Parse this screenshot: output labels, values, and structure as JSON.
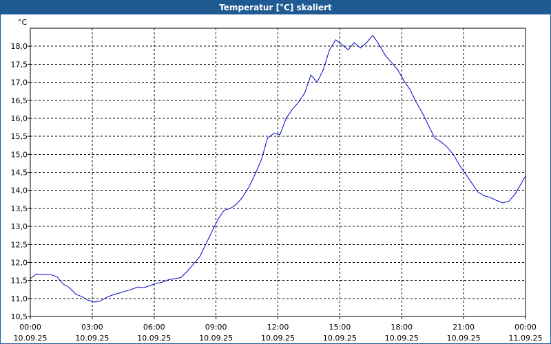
{
  "window": {
    "title": "Temperatur [°C] skaliert"
  },
  "chart_data": {
    "type": "line",
    "title": "Temperatur [°C] skaliert",
    "ylabel": "°C",
    "xlabel": "",
    "ylim": [
      10.5,
      18.5
    ],
    "xlim_hours": [
      0,
      24
    ],
    "grid": true,
    "series_color": "#0000c8",
    "yticks": [
      "10,5",
      "11,0",
      "11,5",
      "12,0",
      "12,5",
      "13,0",
      "13,5",
      "14,0",
      "14,5",
      "15,0",
      "15,5",
      "16,0",
      "16,5",
      "17,0",
      "17,5",
      "18,0"
    ],
    "xticks": [
      {
        "time": "00:00",
        "date": "10.09.25"
      },
      {
        "time": "03:00",
        "date": "10.09.25"
      },
      {
        "time": "06:00",
        "date": "10.09.25"
      },
      {
        "time": "09:00",
        "date": "10.09.25"
      },
      {
        "time": "12:00",
        "date": "10.09.25"
      },
      {
        "time": "15:00",
        "date": "10.09.25"
      },
      {
        "time": "18:00",
        "date": "10.09.25"
      },
      {
        "time": "21:00",
        "date": "10.09.25"
      },
      {
        "time": "00:00",
        "date": "11.09.25"
      }
    ],
    "series": [
      {
        "x": [
          0.0,
          0.3,
          0.6,
          1.0,
          1.3,
          1.6,
          1.9,
          2.2,
          2.5,
          2.8,
          3.1,
          3.4,
          3.7,
          4.0,
          4.3,
          4.6,
          4.9,
          5.2,
          5.5,
          5.8,
          6.1,
          6.4,
          6.7,
          7.0,
          7.3,
          7.6,
          7.9,
          8.2,
          8.5,
          8.8,
          9.1,
          9.4,
          9.7,
          10.0,
          10.3,
          10.6,
          10.9,
          11.2,
          11.5,
          11.8,
          12.1,
          12.4,
          12.7,
          13.0,
          13.3,
          13.6,
          13.9,
          14.2,
          14.5,
          14.8,
          15.1,
          15.4,
          15.7,
          16.0,
          16.3,
          16.6,
          16.9,
          17.2,
          17.5,
          17.8,
          18.1,
          18.4,
          18.7,
          19.0,
          19.3,
          19.6,
          19.9,
          20.2,
          20.5,
          20.8,
          21.1,
          21.4,
          21.7,
          22.0,
          22.3,
          22.6,
          22.9,
          23.2,
          23.5,
          23.8,
          24.0
        ],
        "y": [
          11.55,
          11.68,
          11.67,
          11.66,
          11.6,
          11.4,
          11.3,
          11.12,
          11.05,
          10.95,
          10.9,
          10.93,
          11.03,
          11.1,
          11.15,
          11.2,
          11.25,
          11.32,
          11.3,
          11.36,
          11.42,
          11.45,
          11.52,
          11.55,
          11.58,
          11.75,
          11.95,
          12.15,
          12.5,
          12.85,
          13.2,
          13.45,
          13.5,
          13.62,
          13.82,
          14.1,
          14.45,
          14.85,
          15.45,
          15.58,
          15.55,
          16.0,
          16.25,
          16.45,
          16.7,
          17.2,
          17.0,
          17.35,
          17.9,
          18.18,
          18.05,
          17.9,
          18.1,
          17.95,
          18.1,
          18.3,
          18.05,
          17.75,
          17.55,
          17.35,
          17.05,
          16.8,
          16.45,
          16.15,
          15.8,
          15.45,
          15.35,
          15.2,
          15.0,
          14.7,
          14.45,
          14.2,
          13.95,
          13.85,
          13.8,
          13.72,
          13.65,
          13.7,
          13.9,
          14.2,
          14.4
        ]
      }
    ]
  }
}
